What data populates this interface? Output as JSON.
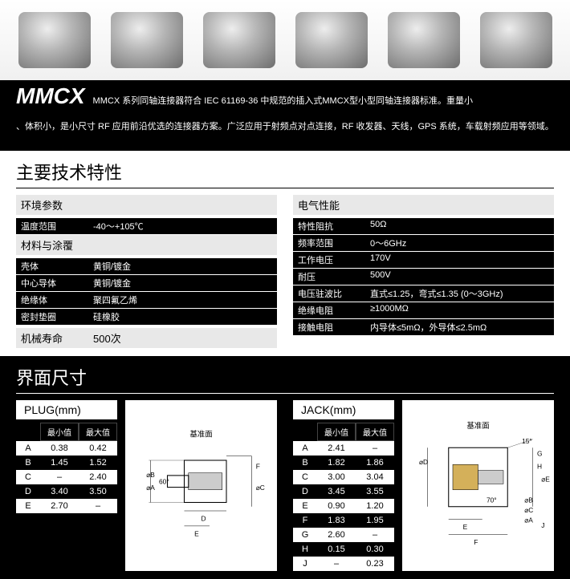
{
  "product": {
    "name": "MMCX",
    "subtitle": "MMCX 系列同轴连接器符合 IEC 61169-36 中规范的插入式MMCX型小型同轴连接器标准。重量小",
    "description": "、体积小，是小尺寸 RF 应用前沿优选的连接器方案。广泛应用于射频点对点连接，RF 收发器、天线，GPS 系统，车载射频应用等领域。"
  },
  "section1_title": "主要技术特性",
  "env": {
    "heading": "环境参数",
    "rows": [
      {
        "label": "温度范围",
        "value": "-40～+105℃"
      }
    ]
  },
  "material": {
    "heading": "材料与涂覆",
    "rows": [
      {
        "label": "壳体",
        "value": "黄铜/镀金"
      },
      {
        "label": "中心导体",
        "value": "黄铜/镀金"
      },
      {
        "label": "绝缘体",
        "value": "聚四氟乙烯"
      },
      {
        "label": "密封垫圈",
        "value": "硅橡胶"
      }
    ]
  },
  "life": {
    "label": "机械寿命",
    "value": "500次"
  },
  "electrical": {
    "heading": "电气性能",
    "rows": [
      {
        "label": "特性阻抗",
        "value": "50Ω"
      },
      {
        "label": "频率范围",
        "value": "0～6GHz"
      },
      {
        "label": "工作电压",
        "value": "170V"
      },
      {
        "label": "耐压",
        "value": "500V"
      },
      {
        "label": "电压驻波比",
        "value": "直式≤1.25，弯式≤1.35 (0～3GHz)"
      },
      {
        "label": "绝缘电阻",
        "value": "≥1000MΩ"
      },
      {
        "label": "接触电阻",
        "value": "内导体≤5mΩ，外导体≤2.5mΩ"
      }
    ]
  },
  "section2_title": "界面尺寸",
  "plug": {
    "title": "PLUG(mm)",
    "headers": [
      "最小值",
      "最大值"
    ],
    "diagram_label": "基准面",
    "rows": [
      {
        "letter": "A",
        "min": "0.38",
        "max": "0.42"
      },
      {
        "letter": "B",
        "min": "1.45",
        "max": "1.52"
      },
      {
        "letter": "C",
        "min": "–",
        "max": "2.40"
      },
      {
        "letter": "D",
        "min": "3.40",
        "max": "3.50"
      },
      {
        "letter": "E",
        "min": "2.70",
        "max": "–"
      }
    ]
  },
  "jack": {
    "title": "JACK(mm)",
    "headers": [
      "最小值",
      "最大值"
    ],
    "diagram_label": "基准面",
    "rows": [
      {
        "letter": "A",
        "min": "2.41",
        "max": "–"
      },
      {
        "letter": "B",
        "min": "1.82",
        "max": "1.86"
      },
      {
        "letter": "C",
        "min": "3.00",
        "max": "3.04"
      },
      {
        "letter": "D",
        "min": "3.45",
        "max": "3.55"
      },
      {
        "letter": "E",
        "min": "0.90",
        "max": "1.20"
      },
      {
        "letter": "F",
        "min": "1.83",
        "max": "1.95"
      },
      {
        "letter": "G",
        "min": "2.60",
        "max": "–"
      },
      {
        "letter": "H",
        "min": "0.15",
        "max": "0.30"
      },
      {
        "letter": "J",
        "min": "–",
        "max": "0.23"
      }
    ]
  }
}
